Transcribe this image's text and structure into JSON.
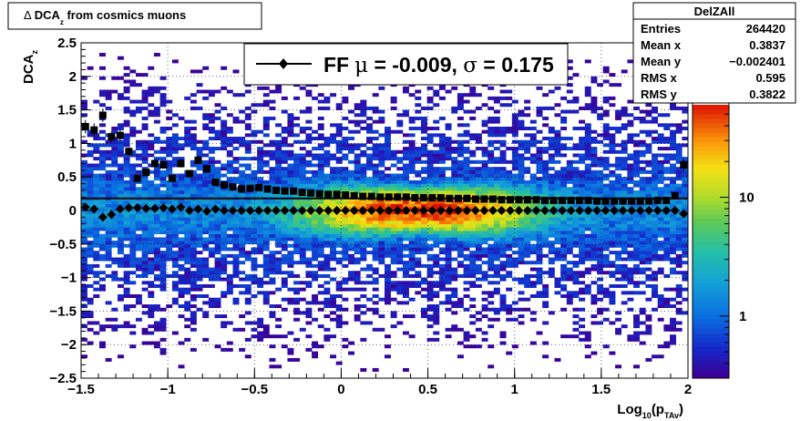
{
  "title": {
    "symbol": "Δ",
    "main": "DCA",
    "sub": "z",
    "rest": " from cosmics muons"
  },
  "legend": {
    "prefix": "FF",
    "mu_symbol": "μ",
    "mu_text": " = -0.009, ",
    "sigma_symbol": "σ",
    "sigma_text": " =   0.175"
  },
  "stats": {
    "name": "DelZAll",
    "rows": [
      {
        "label": "Entries",
        "value": "264420"
      },
      {
        "label": "Mean x",
        "value": "0.3837"
      },
      {
        "label": "Mean y",
        "value": "−0.002401"
      },
      {
        "label": "RMS x",
        "value": "0.595"
      },
      {
        "label": "RMS y",
        "value": "0.3822"
      }
    ]
  },
  "colors": {
    "profile": "#000000",
    "fit_line": "#000000"
  },
  "chart_data": {
    "type": "heatmap",
    "xlabel": {
      "main": "Log",
      "sub1": "10",
      "paren": "(p",
      "sub2": "TAv",
      "close": ")"
    },
    "ylabel": {
      "main": "DCA",
      "sub": "z"
    },
    "xlim": [
      -1.5,
      2
    ],
    "ylim": [
      -2.5,
      2.5
    ],
    "xticks": [
      {
        "v": -1.5,
        "label": "−1.5"
      },
      {
        "v": -1,
        "label": "−1"
      },
      {
        "v": -0.5,
        "label": "−0.5"
      },
      {
        "v": 0,
        "label": "0"
      },
      {
        "v": 0.5,
        "label": "0.5"
      },
      {
        "v": 1,
        "label": "1"
      },
      {
        "v": 1.5,
        "label": "1.5"
      },
      {
        "v": 2,
        "label": "2"
      }
    ],
    "yticks": [
      {
        "v": -2.5,
        "label": "−2.5"
      },
      {
        "v": -2,
        "label": "−2"
      },
      {
        "v": -1.5,
        "label": "−1.5"
      },
      {
        "v": -1,
        "label": "−1"
      },
      {
        "v": -0.5,
        "label": "−0.5"
      },
      {
        "v": 0,
        "label": "0"
      },
      {
        "v": 0.5,
        "label": "0.5"
      },
      {
        "v": 1,
        "label": "1"
      },
      {
        "v": 1.5,
        "label": "1.5"
      },
      {
        "v": 2,
        "label": "2"
      },
      {
        "v": 2.5,
        "label": "2.5"
      }
    ],
    "grid": true,
    "z_scale": "log",
    "zlim": [
      0.3,
      60
    ],
    "zticks": [
      {
        "v": 1,
        "label": "1"
      },
      {
        "v": 10,
        "label": "10"
      }
    ],
    "fit_y": 0.18,
    "series": [
      {
        "kind": "rms",
        "marker": "square",
        "x": [
          -1.475,
          -1.425,
          -1.375,
          -1.325,
          -1.275,
          -1.225,
          -1.175,
          -1.125,
          -1.075,
          -1.025,
          -0.975,
          -0.925,
          -0.875,
          -0.825,
          -0.775,
          -0.725,
          -0.675,
          -0.625,
          -0.575,
          -0.525,
          -0.475,
          -0.425,
          -0.375,
          -0.325,
          -0.275,
          -0.225,
          -0.175,
          -0.125,
          -0.075,
          -0.025,
          0.025,
          0.075,
          0.125,
          0.175,
          0.225,
          0.275,
          0.325,
          0.375,
          0.425,
          0.475,
          0.525,
          0.575,
          0.625,
          0.675,
          0.725,
          0.775,
          0.825,
          0.875,
          0.925,
          0.975,
          1.025,
          1.075,
          1.125,
          1.175,
          1.225,
          1.275,
          1.325,
          1.375,
          1.425,
          1.475,
          1.525,
          1.575,
          1.625,
          1.675,
          1.725,
          1.775,
          1.825,
          1.875,
          1.925,
          1.975
        ],
        "y": [
          1.25,
          1.2,
          1.42,
          1.1,
          1.12,
          0.88,
          0.48,
          0.57,
          0.7,
          0.68,
          0.48,
          0.7,
          0.55,
          0.75,
          0.62,
          0.42,
          0.38,
          0.35,
          0.32,
          0.33,
          0.34,
          0.32,
          0.3,
          0.29,
          0.29,
          0.27,
          0.26,
          0.25,
          0.24,
          0.24,
          0.23,
          0.22,
          0.21,
          0.21,
          0.2,
          0.2,
          0.2,
          0.2,
          0.19,
          0.19,
          0.19,
          0.19,
          0.18,
          0.18,
          0.18,
          0.17,
          0.17,
          0.17,
          0.16,
          0.16,
          0.16,
          0.16,
          0.16,
          0.15,
          0.15,
          0.15,
          0.15,
          0.15,
          0.15,
          0.14,
          0.14,
          0.14,
          0.14,
          0.14,
          0.14,
          0.14,
          0.15,
          0.15,
          0.22,
          0.68
        ],
        "err": [
          0.1,
          0.1,
          0.1,
          0.08,
          0.08,
          0.06,
          0.05,
          0.05,
          0.05,
          0.05,
          0.05,
          0.06,
          0.05,
          0.06,
          0.05,
          0.03,
          0.02,
          0.02,
          0.02,
          0.02,
          0.02,
          0.02,
          0.02,
          0.02,
          0.02,
          0.01,
          0.01,
          0.01,
          0.01,
          0.01,
          0.01,
          0.01,
          0.01,
          0.01,
          0.01,
          0.01,
          0.01,
          0.01,
          0.01,
          0.01,
          0.01,
          0.01,
          0.01,
          0.01,
          0.01,
          0.01,
          0.01,
          0.01,
          0.01,
          0.01,
          0.01,
          0.01,
          0.01,
          0.01,
          0.01,
          0.01,
          0.01,
          0.01,
          0.01,
          0.01,
          0.01,
          0.01,
          0.01,
          0.01,
          0.01,
          0.01,
          0.02,
          0.02,
          0.05,
          0.1
        ]
      },
      {
        "kind": "mean",
        "marker": "diamond",
        "x": [
          -1.475,
          -1.425,
          -1.375,
          -1.325,
          -1.275,
          -1.225,
          -1.175,
          -1.125,
          -1.075,
          -1.025,
          -0.975,
          -0.925,
          -0.875,
          -0.825,
          -0.775,
          -0.725,
          -0.675,
          -0.625,
          -0.575,
          -0.525,
          -0.475,
          -0.425,
          -0.375,
          -0.325,
          -0.275,
          -0.225,
          -0.175,
          -0.125,
          -0.075,
          -0.025,
          0.025,
          0.075,
          0.125,
          0.175,
          0.225,
          0.275,
          0.325,
          0.375,
          0.425,
          0.475,
          0.525,
          0.575,
          0.625,
          0.675,
          0.725,
          0.775,
          0.825,
          0.875,
          0.925,
          0.975,
          1.025,
          1.075,
          1.125,
          1.175,
          1.225,
          1.275,
          1.325,
          1.375,
          1.425,
          1.475,
          1.525,
          1.575,
          1.625,
          1.675,
          1.725,
          1.775,
          1.825,
          1.875,
          1.925,
          1.975
        ],
        "y": [
          0.05,
          0.02,
          -0.1,
          -0.06,
          0.02,
          0.04,
          0.04,
          0.03,
          0.03,
          0.04,
          0.02,
          0.05,
          0.0,
          0.02,
          -0.01,
          0.02,
          0.0,
          0.0,
          0.0,
          0.0,
          0.0,
          0.0,
          0.0,
          0.0,
          0.0,
          0.0,
          0.0,
          0.0,
          0.0,
          0.0,
          0.0,
          0.0,
          0.0,
          0.0,
          0.0,
          0.0,
          0.0,
          0.0,
          0.0,
          0.0,
          0.0,
          0.0,
          0.0,
          0.0,
          0.0,
          0.0,
          0.0,
          0.0,
          0.0,
          0.0,
          0.0,
          0.0,
          0.0,
          0.0,
          0.0,
          0.0,
          0.0,
          0.0,
          0.0,
          0.0,
          0.0,
          0.0,
          0.0,
          0.0,
          0.0,
          0.0,
          0.0,
          0.0,
          0.0,
          -0.05
        ],
        "err": [
          0.04,
          0.04,
          0.05,
          0.04,
          0.03,
          0.03,
          0.03,
          0.03,
          0.03,
          0.03,
          0.03,
          0.03,
          0.03,
          0.03,
          0.03,
          0.02,
          0.01,
          0.01,
          0.01,
          0.01,
          0.01,
          0.01,
          0.01,
          0.01,
          0.01,
          0.01,
          0.01,
          0.01,
          0.01,
          0.01,
          0.01,
          0.01,
          0.01,
          0.01,
          0.01,
          0.01,
          0.01,
          0.01,
          0.01,
          0.01,
          0.01,
          0.01,
          0.01,
          0.01,
          0.01,
          0.01,
          0.01,
          0.01,
          0.01,
          0.01,
          0.01,
          0.01,
          0.01,
          0.01,
          0.01,
          0.01,
          0.01,
          0.01,
          0.01,
          0.01,
          0.01,
          0.01,
          0.01,
          0.01,
          0.01,
          0.01,
          0.01,
          0.01,
          0.02,
          0.04
        ]
      }
    ]
  }
}
